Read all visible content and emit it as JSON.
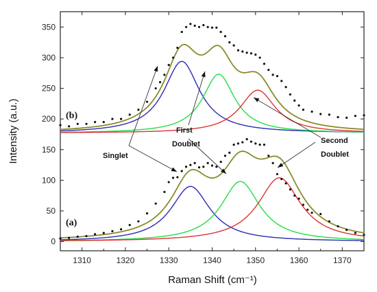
{
  "chart_data": {
    "type": "line",
    "title": "",
    "xlabel": "Raman Shift (cm⁻¹)",
    "ylabel": "Intensity (a.u.)",
    "xlim": [
      1305,
      1375
    ],
    "ylim": [
      -15,
      375
    ],
    "xticks": [
      1310,
      1320,
      1330,
      1340,
      1350,
      1360,
      1370
    ],
    "yticks": [
      0,
      50,
      100,
      150,
      200,
      250,
      300,
      350
    ],
    "grid": false,
    "legend": "none",
    "colors": {
      "singlet": "#2b2bb0",
      "first_doublet": "#22dd44",
      "second_doublet": "#dd3333",
      "fit": "#8a8a2a",
      "points": "#111111"
    },
    "panels": [
      {
        "label": "(a)",
        "series": [
          {
            "key": "singlet",
            "type": "lorentzian",
            "center": 1335,
            "amplitude": 90,
            "hwhm": 5.5,
            "baseline": 0
          },
          {
            "key": "first_doublet",
            "type": "lorentzian",
            "center": 1346.5,
            "amplitude": 98,
            "hwhm": 5.5,
            "baseline": 0
          },
          {
            "key": "second_doublet",
            "type": "lorentzian",
            "center": 1355.5,
            "amplitude": 104,
            "hwhm": 6,
            "baseline": 0
          }
        ],
        "points": [
          [
            1305,
            5
          ],
          [
            1307,
            6
          ],
          [
            1309,
            8
          ],
          [
            1311,
            9
          ],
          [
            1313,
            12
          ],
          [
            1315,
            14
          ],
          [
            1317,
            17
          ],
          [
            1319,
            20
          ],
          [
            1321,
            27
          ],
          [
            1323,
            33
          ],
          [
            1325,
            46
          ],
          [
            1327,
            62
          ],
          [
            1329,
            81
          ],
          [
            1330,
            97
          ],
          [
            1331,
            104
          ],
          [
            1332,
            105
          ],
          [
            1333,
            115
          ],
          [
            1334,
            122
          ],
          [
            1335,
            125
          ],
          [
            1336,
            128
          ],
          [
            1337,
            121
          ],
          [
            1338,
            122
          ],
          [
            1339,
            128
          ],
          [
            1340,
            124
          ],
          [
            1341,
            122
          ],
          [
            1342,
            130
          ],
          [
            1343,
            140
          ],
          [
            1344,
            145
          ],
          [
            1345,
            158
          ],
          [
            1346,
            160
          ],
          [
            1347,
            162
          ],
          [
            1348,
            167
          ],
          [
            1349,
            163
          ],
          [
            1350,
            160
          ],
          [
            1351,
            158
          ],
          [
            1352,
            158
          ],
          [
            1353,
            140
          ],
          [
            1354,
            128
          ],
          [
            1355,
            110
          ],
          [
            1356,
            102
          ],
          [
            1357,
            95
          ],
          [
            1358,
            85
          ],
          [
            1359,
            75
          ],
          [
            1360,
            70
          ],
          [
            1361,
            60
          ],
          [
            1362,
            52
          ],
          [
            1363,
            47
          ],
          [
            1365,
            45
          ],
          [
            1367,
            33
          ],
          [
            1369,
            25
          ],
          [
            1371,
            19
          ],
          [
            1373,
            14
          ],
          [
            1375,
            11
          ]
        ]
      },
      {
        "label": "(b)",
        "series": [
          {
            "key": "singlet",
            "type": "lorentzian",
            "center": 1333,
            "amplitude": 117,
            "hwhm": 5,
            "baseline": 177
          },
          {
            "key": "first_doublet",
            "type": "lorentzian",
            "center": 1341.5,
            "amplitude": 96,
            "hwhm": 4.5,
            "baseline": 177
          },
          {
            "key": "second_doublet",
            "type": "lorentzian",
            "center": 1350.5,
            "amplitude": 70,
            "hwhm": 5,
            "baseline": 177
          }
        ],
        "points": [
          [
            1305,
            190
          ],
          [
            1307,
            188
          ],
          [
            1309,
            192
          ],
          [
            1311,
            192
          ],
          [
            1313,
            195
          ],
          [
            1315,
            195
          ],
          [
            1317,
            200
          ],
          [
            1319,
            200
          ],
          [
            1321,
            207
          ],
          [
            1323,
            215
          ],
          [
            1325,
            228
          ],
          [
            1327,
            250
          ],
          [
            1328,
            260
          ],
          [
            1329,
            272
          ],
          [
            1330,
            288
          ],
          [
            1331,
            300
          ],
          [
            1332,
            316
          ],
          [
            1333,
            342
          ],
          [
            1334,
            350
          ],
          [
            1335,
            355
          ],
          [
            1336,
            352
          ],
          [
            1337,
            350
          ],
          [
            1338,
            353
          ],
          [
            1339,
            350
          ],
          [
            1340,
            349
          ],
          [
            1341,
            349
          ],
          [
            1342,
            342
          ],
          [
            1343,
            335
          ],
          [
            1344,
            325
          ],
          [
            1345,
            320
          ],
          [
            1346,
            312
          ],
          [
            1347,
            310
          ],
          [
            1348,
            308
          ],
          [
            1349,
            307
          ],
          [
            1350,
            305
          ],
          [
            1351,
            300
          ],
          [
            1352,
            290
          ],
          [
            1353,
            280
          ],
          [
            1354,
            272
          ],
          [
            1355,
            270
          ],
          [
            1356,
            262
          ],
          [
            1357,
            252
          ],
          [
            1358,
            240
          ],
          [
            1359,
            230
          ],
          [
            1360,
            222
          ],
          [
            1361,
            215
          ],
          [
            1363,
            212
          ],
          [
            1365,
            208
          ],
          [
            1367,
            207
          ],
          [
            1369,
            203
          ],
          [
            1371,
            202
          ],
          [
            1373,
            205
          ],
          [
            1375,
            206
          ]
        ]
      }
    ],
    "annotations": {
      "singlet": "Singlet",
      "first_line1": "First",
      "first_line2": "Doublet",
      "second_line1": "Second",
      "second_line2": "Doublet"
    }
  }
}
